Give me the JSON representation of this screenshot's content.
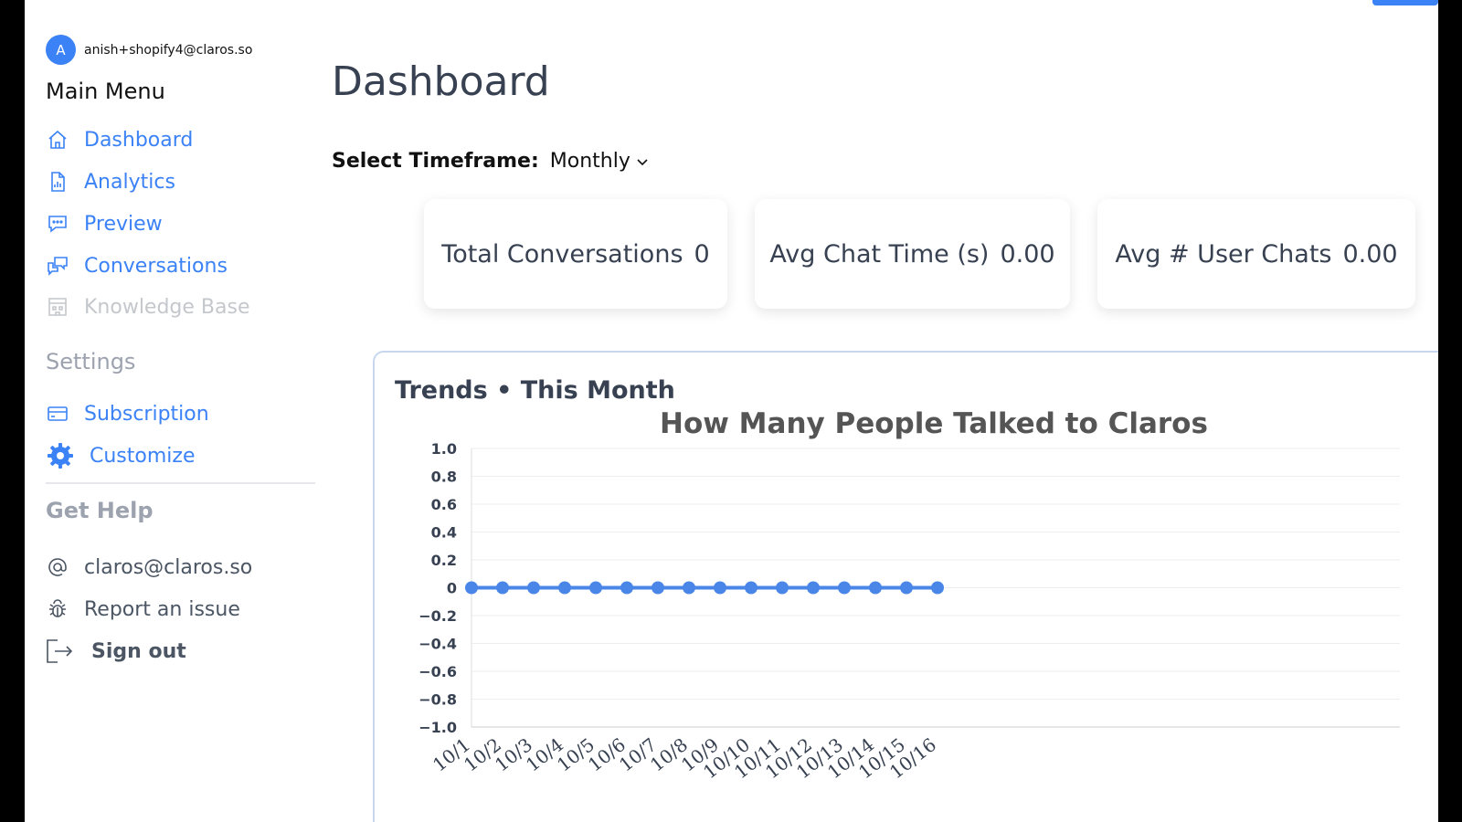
{
  "user": {
    "avatar_initial": "A",
    "email": "anish+shopify4@claros.so"
  },
  "sidebar": {
    "main_heading": "Main Menu",
    "main_items": [
      {
        "label": "Dashboard",
        "icon": "home-icon"
      },
      {
        "label": "Analytics",
        "icon": "document-chart-icon"
      },
      {
        "label": "Preview",
        "icon": "chat-bubble-icon"
      },
      {
        "label": "Conversations",
        "icon": "chat-bubbles-icon"
      },
      {
        "label": "Knowledge Base",
        "icon": "building-icon",
        "disabled": true
      }
    ],
    "settings_heading": "Settings",
    "settings_items": [
      {
        "label": "Subscription",
        "icon": "credit-card-icon"
      },
      {
        "label": "Customize",
        "icon": "gear-icon"
      }
    ],
    "help_heading": "Get Help",
    "help_items": [
      {
        "label": "claros@claros.so",
        "icon": "at-icon"
      },
      {
        "label": "Report an issue",
        "icon": "bug-icon"
      }
    ],
    "signout_label": "Sign out"
  },
  "main": {
    "title": "Dashboard",
    "timeframe_label": "Select Timeframe:",
    "timeframe_value": "Monthly",
    "cards": [
      {
        "label": "Total Conversations",
        "value": "0"
      },
      {
        "label": "Avg Chat Time (s)",
        "value": "0.00"
      },
      {
        "label": "Avg # User Chats",
        "value": "0.00"
      }
    ],
    "panel_title": "Trends • This Month"
  },
  "colors": {
    "accent": "#3b82f6",
    "muted": "#9ca3af"
  },
  "chart_data": {
    "type": "line",
    "title": "How Many People Talked to Claros",
    "categories": [
      "10/1",
      "10/2",
      "10/3",
      "10/4",
      "10/5",
      "10/6",
      "10/7",
      "10/8",
      "10/9",
      "10/10",
      "10/11",
      "10/12",
      "10/13",
      "10/14",
      "10/15",
      "10/16"
    ],
    "series": [
      {
        "values": [
          0,
          0,
          0,
          0,
          0,
          0,
          0,
          0,
          0,
          0,
          0,
          0,
          0,
          0,
          0,
          0
        ]
      }
    ],
    "ylim": [
      -1.0,
      1.0
    ],
    "y_ticks": [
      "1.0",
      "0.8",
      "0.6",
      "0.4",
      "0.2",
      "0",
      "−0.2",
      "−0.4",
      "−0.6",
      "−0.8",
      "−1.0"
    ],
    "grid": true,
    "line_color": "#4a86e8"
  }
}
